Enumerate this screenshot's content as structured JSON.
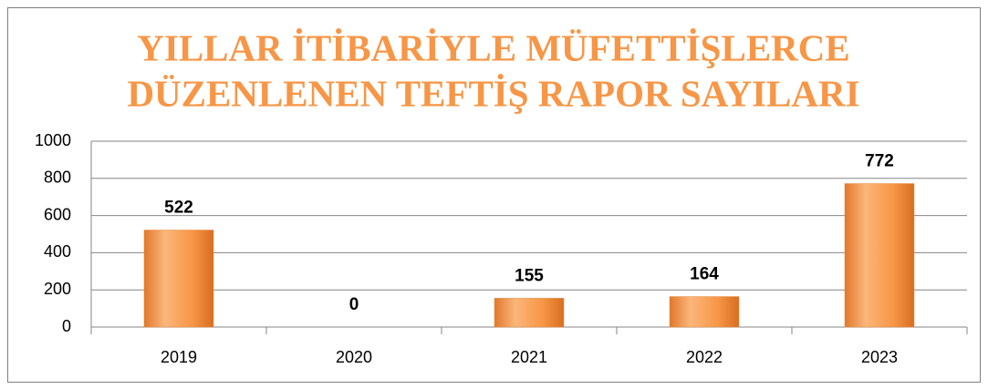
{
  "chart_data": {
    "type": "bar",
    "title": [
      "YILLAR İTİBARİYLE MÜFETTİŞLERCE",
      "DÜZENLENEN TEFTİŞ RAPOR SAYILARI"
    ],
    "categories": [
      "2019",
      "2020",
      "2021",
      "2022",
      "2023"
    ],
    "values": [
      522,
      0,
      155,
      164,
      772
    ],
    "color": "#f79646",
    "ylim": [
      0,
      1000
    ],
    "yticks": [
      0,
      200,
      400,
      600,
      800,
      1000
    ],
    "grid": true
  }
}
